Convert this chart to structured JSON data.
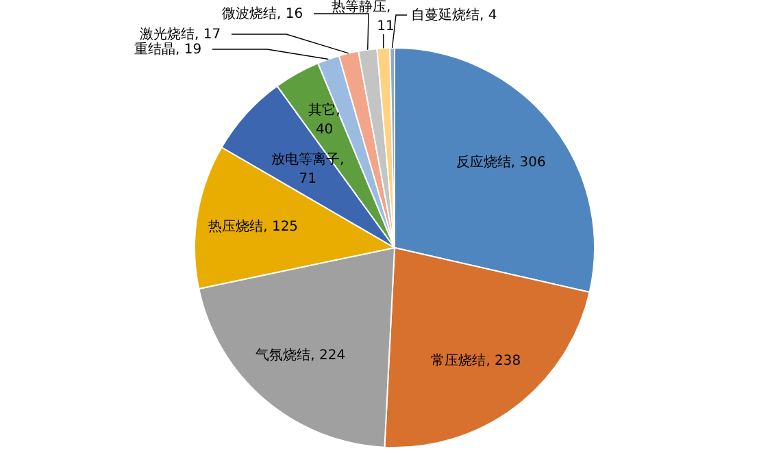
{
  "chart_data": {
    "type": "pie",
    "categories": [
      "反应烧结",
      "常压烧结",
      "气氛烧结",
      "热压烧结",
      "放电等离子",
      "其它",
      "重结晶",
      "激光烧结",
      "微波烧结",
      "热等静压",
      "自蔓延烧结"
    ],
    "values": [
      306,
      238,
      224,
      125,
      71,
      40,
      19,
      17,
      16,
      11,
      4
    ],
    "colors": [
      "#4f86c0",
      "#d8702e",
      "#a0a0a0",
      "#e8ad00",
      "#3c66b0",
      "#5f9e3e",
      "#9cbbe0",
      "#f3a589",
      "#c4c4c4",
      "#ffd27f",
      "#8fa8d0"
    ],
    "value_labels": [
      ", 306",
      ", 238",
      ", 224",
      ", 125",
      ", 71",
      ", 40",
      ", 19",
      ", 17",
      ", 16",
      ", 11",
      ", 4"
    ],
    "legend": false
  }
}
